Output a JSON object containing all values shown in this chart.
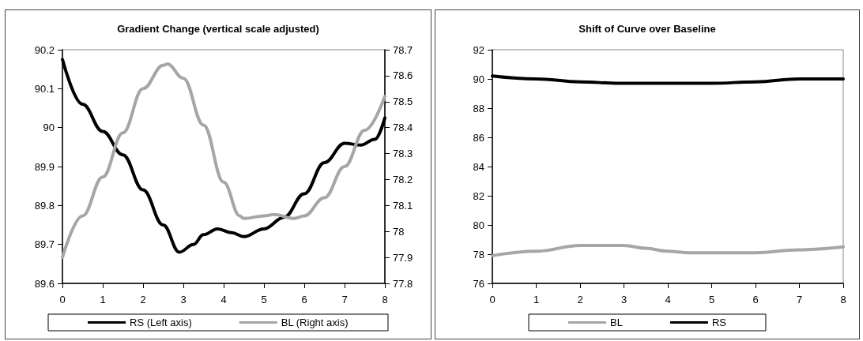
{
  "chart_data": [
    {
      "type": "line",
      "title": "Gradient Change (vertical scale adjusted)",
      "xlim": [
        0,
        8
      ],
      "xticks": [
        0,
        1,
        2,
        3,
        4,
        5,
        6,
        7,
        8
      ],
      "ylim": [
        89.6,
        90.2
      ],
      "yticks": [
        89.6,
        89.7,
        89.8,
        89.9,
        90,
        90.1,
        90.2
      ],
      "y2lim": [
        77.8,
        78.7
      ],
      "y2ticks": [
        77.8,
        77.9,
        78,
        78.1,
        78.2,
        78.3,
        78.4,
        78.5,
        78.6,
        78.7
      ],
      "grid": false,
      "legend": "bottom",
      "marker": "none",
      "series": [
        {
          "name": "RS (Left axis)",
          "color": "#000000",
          "x": [
            0,
            0.5,
            1,
            1.5,
            2,
            2.5,
            2.9,
            3.25,
            3.5,
            3.85,
            4.2,
            4.5,
            5,
            5.5,
            6,
            6.5,
            7,
            7.4,
            7.75,
            8
          ],
          "values": [
            90.175,
            90.06,
            89.99,
            89.93,
            89.84,
            89.75,
            89.68,
            89.7,
            89.725,
            89.74,
            89.73,
            89.72,
            89.74,
            89.77,
            89.83,
            89.91,
            89.96,
            89.955,
            89.97,
            90.025
          ]
        },
        {
          "name": "BL (Right axis)",
          "color": "#a6a6a6",
          "axis": "y2",
          "x": [
            0,
            0.5,
            1,
            1.5,
            2,
            2.5,
            2.6,
            3,
            3.5,
            4,
            4.4,
            4.5,
            5,
            5.25,
            5.75,
            6,
            6.5,
            7,
            7.5,
            8
          ],
          "values": [
            77.9,
            78.06,
            78.21,
            78.38,
            78.55,
            78.64,
            78.645,
            78.59,
            78.41,
            78.19,
            78.06,
            78.05,
            78.06,
            78.065,
            78.05,
            78.06,
            78.13,
            78.25,
            78.39,
            78.52
          ]
        }
      ]
    },
    {
      "type": "line",
      "title": "Shift of Curve over Baseline",
      "xlim": [
        0,
        8
      ],
      "xticks": [
        0,
        1,
        2,
        3,
        4,
        5,
        6,
        7,
        8
      ],
      "ylim": [
        76,
        92
      ],
      "yticks": [
        76,
        78,
        80,
        82,
        84,
        86,
        88,
        90,
        92
      ],
      "grid": false,
      "legend": "bottom",
      "marker": "none",
      "series": [
        {
          "name": "BL",
          "color": "#a6a6a6",
          "x": [
            0,
            1,
            2,
            2.6,
            3,
            3.5,
            4,
            4.5,
            5,
            5.75,
            6,
            7,
            8
          ],
          "values": [
            77.9,
            78.2,
            78.6,
            78.6,
            78.6,
            78.4,
            78.2,
            78.1,
            78.1,
            78.1,
            78.1,
            78.3,
            78.5
          ]
        },
        {
          "name": "RS",
          "color": "#000000",
          "x": [
            0,
            1,
            2,
            2.9,
            4,
            5,
            6,
            7,
            8
          ],
          "values": [
            90.2,
            90,
            89.8,
            89.7,
            89.7,
            89.7,
            89.8,
            90,
            90
          ]
        }
      ]
    }
  ]
}
